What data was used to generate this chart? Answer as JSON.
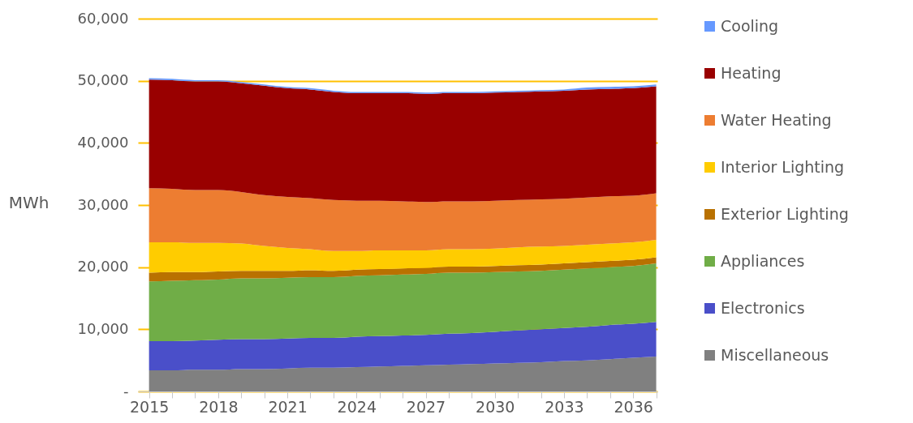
{
  "chart_data": {
    "type": "area",
    "stacked": true,
    "ylabel": "MWh",
    "categories": [
      "2015",
      null,
      null,
      "2018",
      null,
      null,
      "2021",
      null,
      null,
      "2024",
      null,
      null,
      "2027",
      null,
      null,
      "2030",
      null,
      null,
      "2033",
      null,
      null,
      "2036",
      null
    ],
    "ylim": [
      0,
      60000
    ],
    "yticks": [
      {
        "value": 0,
        "label": "-"
      },
      {
        "value": 10000,
        "label": "10,000"
      },
      {
        "value": 20000,
        "label": "20,000"
      },
      {
        "value": 30000,
        "label": "30,000"
      },
      {
        "value": 40000,
        "label": "40,000"
      },
      {
        "value": 50000,
        "label": "50,000"
      },
      {
        "value": 60000,
        "label": "60,000"
      }
    ],
    "grid": "y",
    "legend": "right",
    "series": [
      {
        "name": "Miscellaneous",
        "color": "#808080",
        "values": [
          3400,
          3400,
          3500,
          3500,
          3600,
          3600,
          3700,
          3800,
          3800,
          3900,
          4000,
          4100,
          4200,
          4300,
          4400,
          4500,
          4600,
          4700,
          4900,
          5000,
          5200,
          5400,
          5600
        ]
      },
      {
        "name": "Electronics",
        "color": "#4a4fc9",
        "values": [
          4700,
          4700,
          4700,
          4800,
          4800,
          4800,
          4800,
          4800,
          4800,
          4900,
          4900,
          4900,
          4900,
          5000,
          5000,
          5100,
          5200,
          5300,
          5300,
          5400,
          5500,
          5500,
          5600
        ]
      },
      {
        "name": "Appliances",
        "color": "#70ad47",
        "values": [
          9600,
          9700,
          9700,
          9700,
          9800,
          9800,
          9800,
          9800,
          9800,
          9800,
          9800,
          9800,
          9800,
          9800,
          9700,
          9600,
          9500,
          9400,
          9400,
          9400,
          9300,
          9300,
          9400
        ]
      },
      {
        "name": "Exterior Lighting",
        "color": "#b97100",
        "values": [
          1400,
          1400,
          1300,
          1300,
          1200,
          1200,
          1100,
          1100,
          1000,
          1000,
          1000,
          1000,
          1000,
          1000,
          1000,
          1000,
          1000,
          1000,
          1000,
          1000,
          1000,
          1000,
          1000
        ]
      },
      {
        "name": "Interior Lighting",
        "color": "#ffcc00",
        "values": [
          4900,
          4800,
          4700,
          4600,
          4400,
          4000,
          3700,
          3400,
          3200,
          3000,
          3000,
          2900,
          2800,
          2800,
          2800,
          2800,
          2900,
          2900,
          2800,
          2800,
          2800,
          2800,
          2800
        ]
      },
      {
        "name": "Water Heating",
        "color": "#ed7d31",
        "values": [
          8700,
          8600,
          8500,
          8500,
          8300,
          8200,
          8200,
          8200,
          8200,
          8100,
          8000,
          7900,
          7800,
          7700,
          7700,
          7700,
          7600,
          7600,
          7600,
          7600,
          7600,
          7500,
          7500
        ]
      },
      {
        "name": "Heating",
        "color": "#990000",
        "values": [
          17500,
          17500,
          17500,
          17500,
          17500,
          17600,
          17500,
          17500,
          17400,
          17300,
          17300,
          17400,
          17400,
          17400,
          17400,
          17400,
          17400,
          17400,
          17400,
          17400,
          17300,
          17300,
          17200
        ]
      },
      {
        "name": "Cooling",
        "color": "#6699ff",
        "values": [
          200,
          200,
          200,
          200,
          200,
          200,
          200,
          200,
          200,
          200,
          200,
          200,
          200,
          200,
          200,
          200,
          200,
          200,
          200,
          300,
          300,
          300,
          300
        ]
      }
    ]
  }
}
